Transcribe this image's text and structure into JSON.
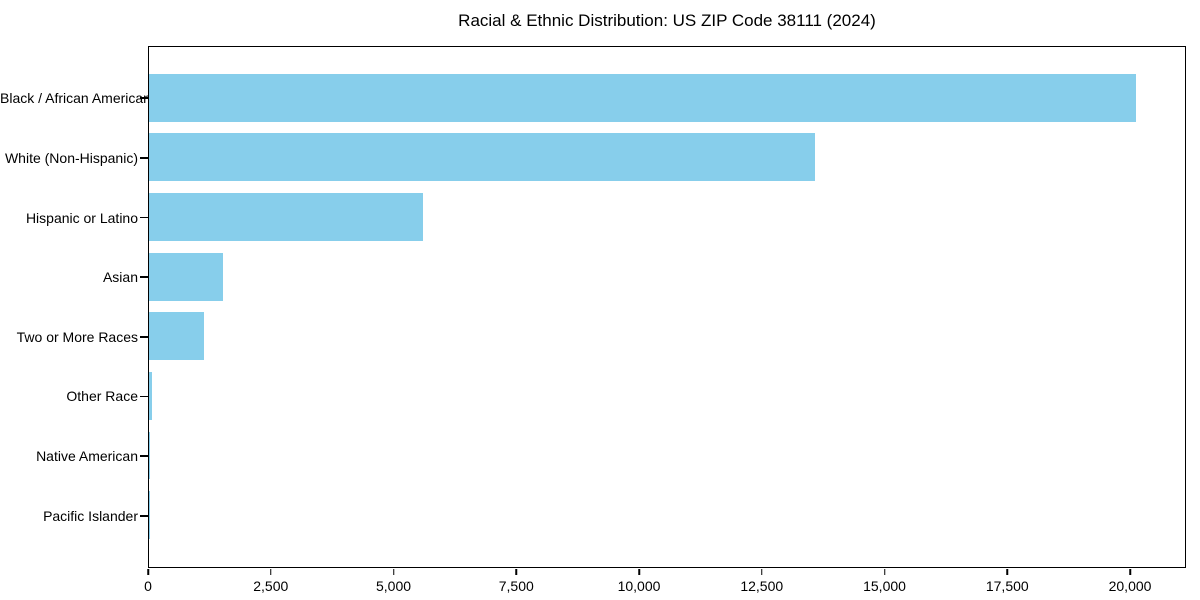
{
  "figure": {
    "title": "Racial & Ethnic Distribution: US ZIP Code 38111 (2024)"
  },
  "chart_data": {
    "type": "bar",
    "orientation": "horizontal",
    "title": "Racial & Ethnic Distribution: US ZIP Code 38111 (2024)",
    "categories": [
      "Black / African American",
      "White (Non-Hispanic)",
      "Hispanic or Latino",
      "Asian",
      "Two or More Races",
      "Other Race",
      "Native American",
      "Pacific Islander"
    ],
    "values": [
      20140,
      13585,
      5600,
      1500,
      1130,
      70,
      20,
      10
    ],
    "xlabel": "",
    "ylabel": "",
    "xlim": [
      0,
      21140
    ],
    "x_ticks": [
      0,
      2500,
      5000,
      7500,
      10000,
      12500,
      15000,
      17500,
      20000
    ],
    "x_tick_labels": [
      "0",
      "2,500",
      "5,000",
      "7,500",
      "10,000",
      "12,500",
      "15,000",
      "17,500",
      "20,000"
    ],
    "bar_color": "#87CEEB",
    "grid": false,
    "legend": "none"
  },
  "colors": {
    "bar": "#87CEEB",
    "axis": "#000000",
    "text": "#000000",
    "background": "#ffffff"
  }
}
